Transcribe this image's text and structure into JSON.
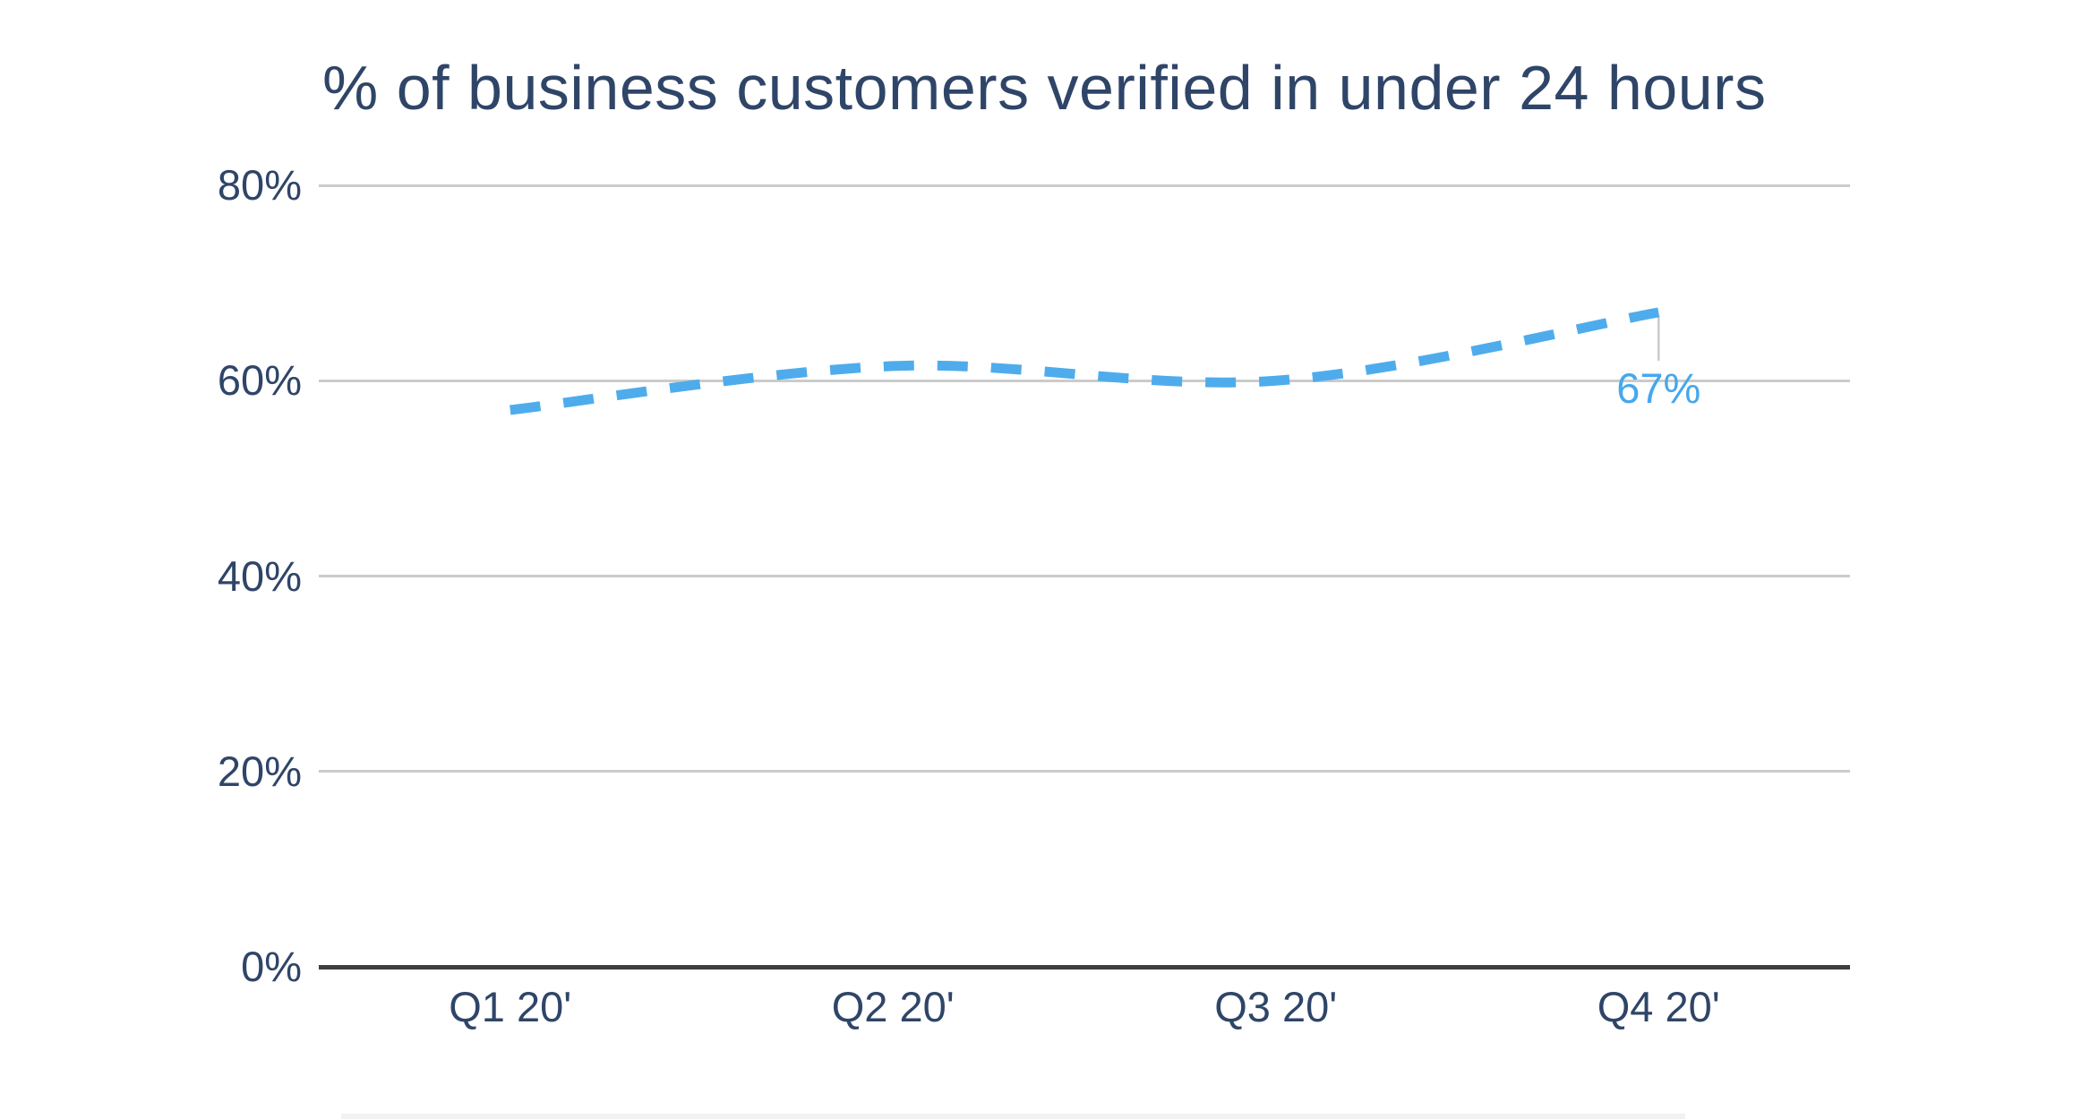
{
  "page": {
    "background_color": "#ffffff"
  },
  "chart_data": {
    "type": "line",
    "title": "% of business customers verified in under 24 hours",
    "categories": [
      "Q1 20'",
      "Q2 20'",
      "Q3 20'",
      "Q4 20'"
    ],
    "series": [
      {
        "name": "% of business customers verified in under 24 hours",
        "values": [
          57,
          61.5,
          60,
          67
        ],
        "line_style": "dashed",
        "smoothed": true,
        "color": "#4FACEC"
      }
    ],
    "xlabel": "",
    "ylabel": "",
    "ylim": [
      0,
      80
    ],
    "y_ticks": [
      {
        "value": 80,
        "label": "80%"
      },
      {
        "value": 60,
        "label": "60%"
      },
      {
        "value": 40,
        "label": "40%"
      },
      {
        "value": 20,
        "label": "20%"
      },
      {
        "value": 0,
        "label": "0%"
      }
    ],
    "grid": "horizontal",
    "legend_position": "none",
    "annotations": [
      {
        "point_index": 3,
        "text": "67%",
        "color": "#45A8EE",
        "leader_line": true
      }
    ],
    "colors": {
      "title_text": "#2F4568",
      "tick_text": "#2F4568",
      "gridline": "#CBCBCB",
      "axis_line": "#3E3E3E",
      "series_line": "#4FACEC",
      "annotation_text": "#45A8EE",
      "leader_line": "#CCCCCC"
    }
  }
}
